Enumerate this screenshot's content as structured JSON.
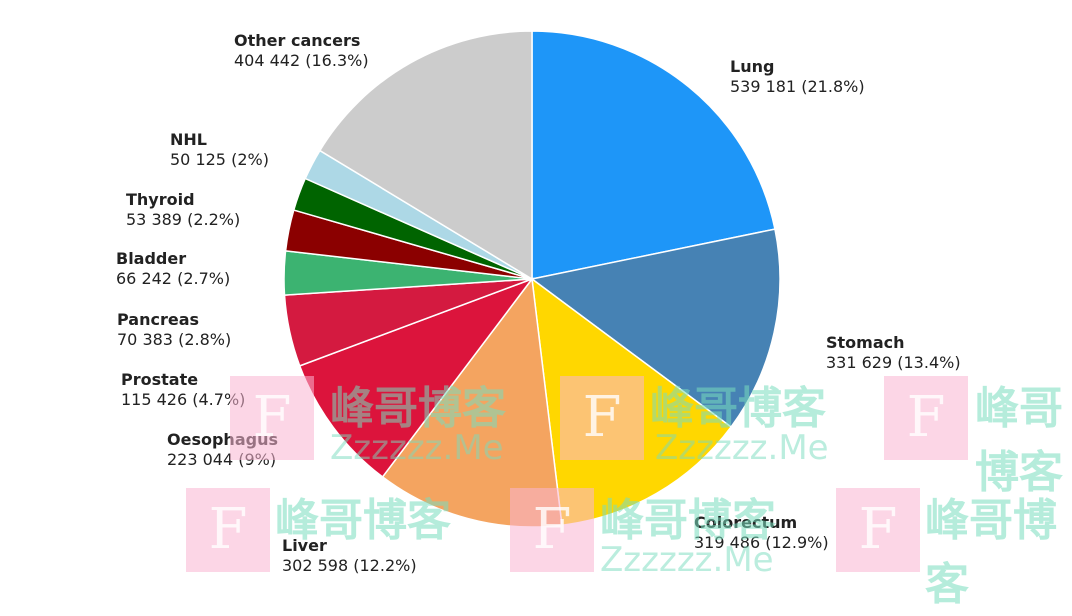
{
  "chart_data": {
    "type": "pie",
    "start": "12 o'clock, clockwise",
    "slices": [
      {
        "name": "Lung",
        "value": 539181,
        "value_label": "539 181 (21.8%)",
        "percent": 21.8,
        "color": "#1e96f8"
      },
      {
        "name": "Stomach",
        "value": 331629,
        "value_label": "331 629 (13.4%)",
        "percent": 13.4,
        "color": "#4682b4"
      },
      {
        "name": "Colorectum",
        "value": 319486,
        "value_label": "319 486 (12.9%)",
        "percent": 12.9,
        "color": "#ffd700"
      },
      {
        "name": "Liver",
        "value": 302598,
        "value_label": "302 598 (12.2%)",
        "percent": 12.2,
        "color": "#f4a460"
      },
      {
        "name": "Oesophagus",
        "value": 223044,
        "value_label": "223 044 (9%)",
        "percent": 9,
        "color": "#dc143c"
      },
      {
        "name": "Prostate",
        "value": 115426,
        "value_label": "115 426 (4.7%)",
        "percent": 4.7,
        "color": "#d41a40"
      },
      {
        "name": "Pancreas",
        "value": 70383,
        "value_label": "70 383 (2.8%)",
        "percent": 2.8,
        "color": "#3cb371"
      },
      {
        "name": "Bladder",
        "value": 66242,
        "value_label": "66 242 (2.7%)",
        "percent": 2.7,
        "color": "#8b0000"
      },
      {
        "name": "Thyroid",
        "value": 53389,
        "value_label": "53 389 (2.2%)",
        "percent": 2.2,
        "color": "#006400"
      },
      {
        "name": "NHL",
        "value": 50125,
        "value_label": "50 125 (2%)",
        "percent": 2,
        "color": "#add8e6"
      },
      {
        "name": "Other cancers",
        "value": 404442,
        "value_label": "404 442 (16.3%)",
        "percent": 16.3,
        "color": "#cccccc"
      }
    ]
  },
  "watermark": {
    "text": "峰哥博客",
    "url_text": "Zzzzzz.Me",
    "logo": "F"
  }
}
